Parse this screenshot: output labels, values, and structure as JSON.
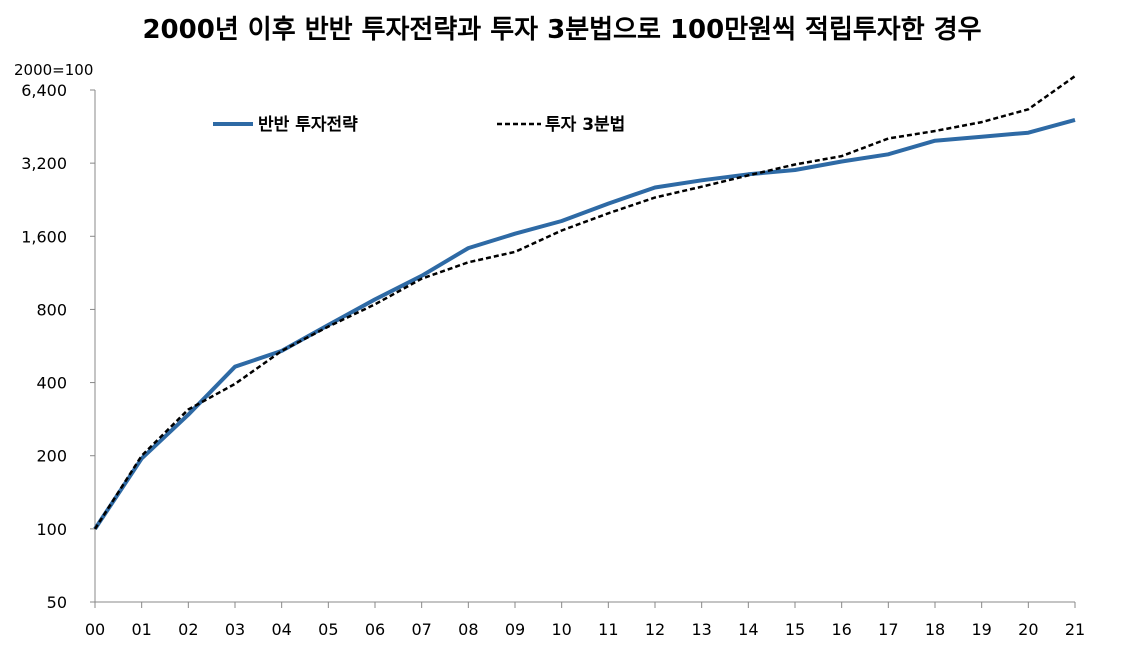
{
  "chart_data": {
    "type": "line",
    "title": "2000년 이후 반반 투자전략과 투자 3분법으로 100만원씩 적립투자한 경우",
    "unit_label": "2000=100",
    "yscale": "log2",
    "ylim": [
      50,
      6400
    ],
    "yticks": [
      50,
      100,
      200,
      400,
      800,
      1600,
      3200,
      6400
    ],
    "ytick_labels": [
      "50",
      "100",
      "200",
      "400",
      "800",
      "1,600",
      "3,200",
      "6,400"
    ],
    "categories": [
      "00",
      "01",
      "02",
      "03",
      "04",
      "05",
      "06",
      "07",
      "08",
      "09",
      "10",
      "11",
      "12",
      "13",
      "14",
      "15",
      "16",
      "17",
      "18",
      "19",
      "20",
      "21"
    ],
    "legend_position": "top",
    "series": [
      {
        "name": "반반 투자전략",
        "color": "#2E6AA5",
        "style": "solid",
        "values": [
          100,
          195,
          295,
          465,
          540,
          690,
          880,
          1100,
          1430,
          1640,
          1850,
          2180,
          2540,
          2720,
          2880,
          3000,
          3250,
          3480,
          3960,
          4110,
          4270,
          4820
        ]
      },
      {
        "name": "투자 3분법",
        "color": "#000000",
        "style": "dashed",
        "values": [
          100,
          200,
          310,
          395,
          540,
          680,
          840,
          1070,
          1250,
          1380,
          1690,
          1990,
          2310,
          2560,
          2850,
          3160,
          3420,
          4040,
          4340,
          4720,
          5330,
          7300
        ]
      }
    ]
  }
}
